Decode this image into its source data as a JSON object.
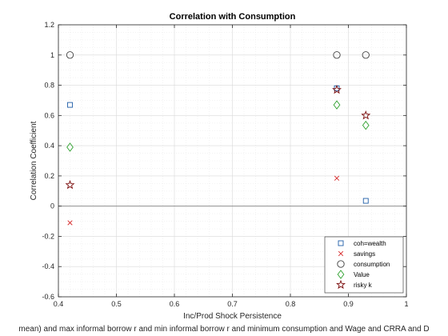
{
  "chart_data": {
    "type": "scatter",
    "title": "Correlation with Consumption",
    "xlabel": "Inc/Prod Shock Persistence",
    "ylabel": "Correlation Coefficient",
    "caption": "mean) and max informal borrow r and min informal borrow r and minimum consumption and Wage and CRRA and D",
    "xlim": [
      0.4,
      1.0
    ],
    "ylim": [
      -0.6,
      1.2
    ],
    "x_ticks": [
      0.4,
      0.5,
      0.6,
      0.7,
      0.8,
      0.9,
      1.0
    ],
    "x_tick_labels": [
      "0.4",
      "0.5",
      "0.6",
      "0.7",
      "0.8",
      "0.9",
      "1"
    ],
    "y_ticks": [
      -0.6,
      -0.4,
      -0.2,
      0,
      0.2,
      0.4,
      0.6,
      0.8,
      1.0,
      1.2
    ],
    "y_tick_labels": [
      "-0.6",
      "-0.4",
      "-0.2",
      "0",
      "0.2",
      "0.4",
      "0.6",
      "0.8",
      "1",
      "1.2"
    ],
    "grid": "minor-dotted",
    "zero_line": true,
    "legend_position": "bottom-right",
    "series": [
      {
        "name": "coh=wealth",
        "marker": "square",
        "color": "#1f5ea8",
        "points": [
          {
            "x": 0.42,
            "y": 0.67
          },
          {
            "x": 0.88,
            "y": 0.78
          },
          {
            "x": 0.93,
            "y": 0.035
          }
        ]
      },
      {
        "name": "savings",
        "marker": "x",
        "color": "#d62728",
        "points": [
          {
            "x": 0.42,
            "y": -0.11
          },
          {
            "x": 0.88,
            "y": 0.185
          },
          {
            "x": 0.93,
            "y": -0.48
          }
        ]
      },
      {
        "name": "consumption",
        "marker": "circle",
        "color": "#404040",
        "points": [
          {
            "x": 0.42,
            "y": 1.0
          },
          {
            "x": 0.88,
            "y": 1.0
          },
          {
            "x": 0.93,
            "y": 1.0
          }
        ]
      },
      {
        "name": "Value",
        "marker": "diamond",
        "color": "#2ca02c",
        "points": [
          {
            "x": 0.42,
            "y": 0.39
          },
          {
            "x": 0.88,
            "y": 0.67
          },
          {
            "x": 0.93,
            "y": 0.535
          }
        ]
      },
      {
        "name": "risky k",
        "marker": "star",
        "color": "#7a0b0b",
        "points": [
          {
            "x": 0.42,
            "y": 0.14
          },
          {
            "x": 0.88,
            "y": 0.77
          },
          {
            "x": 0.93,
            "y": 0.6
          }
        ]
      }
    ]
  }
}
